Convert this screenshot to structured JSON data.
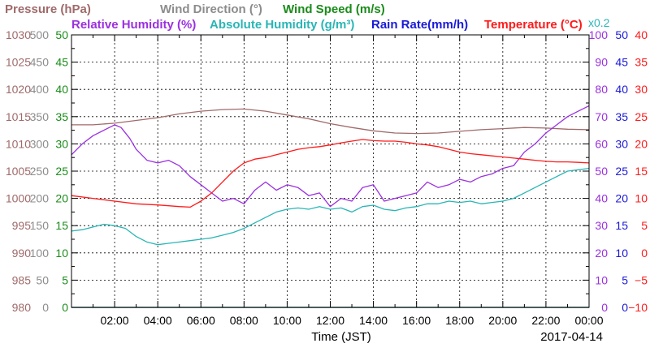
{
  "header": {
    "row1": [
      {
        "text": "Pressure (hPa)",
        "color": "#a06a6a"
      },
      {
        "text": "Wind Direction (°)",
        "color": "#8c8c8c"
      },
      {
        "text": "Wind Speed (m/s)",
        "color": "#1a8c1a"
      }
    ],
    "row2": [
      {
        "text": "Relative Humidity (%)",
        "color": "#9b30e0"
      },
      {
        "text": "Absolute Humidity (g/m³)",
        "color": "#2ab5b5"
      },
      {
        "text": "Rain Rate(mm/h)",
        "color": "#1a1ad8"
      },
      {
        "text": "Temperature (°C)",
        "color": "#ff1a1a"
      }
    ],
    "multiplier": {
      "text": "x0.2",
      "color": "#2ab5b5"
    }
  },
  "footer": {
    "xlabel": "Time (JST)",
    "date": "2017-04-14"
  },
  "chart_data": {
    "type": "line",
    "x_ticks": [
      "02:00",
      "04:00",
      "06:00",
      "08:00",
      "10:00",
      "12:00",
      "14:00",
      "16:00",
      "18:00",
      "20:00",
      "22:00",
      "00:00"
    ],
    "xlim": [
      "00:00",
      "24:00"
    ],
    "grid": true,
    "left_axes": [
      {
        "name": "pressure",
        "ticks": [
          "1030",
          "1025",
          "1020",
          "1015",
          "1010",
          "1005",
          "1000",
          "995",
          "990",
          "985",
          "980"
        ],
        "color": "#a06a6a",
        "range": [
          980,
          1030
        ]
      },
      {
        "name": "wind_direction",
        "ticks": [
          "500",
          "450",
          "400",
          "350",
          "300",
          "250",
          "200",
          "150",
          "100",
          "50",
          "0"
        ],
        "color": "#8c8c8c",
        "range": [
          0,
          500
        ]
      },
      {
        "name": "wind_speed",
        "ticks": [
          "50",
          "45",
          "40",
          "35",
          "30",
          "25",
          "20",
          "15",
          "10",
          "5",
          "0"
        ],
        "color": "#1a8c1a",
        "range": [
          0,
          50
        ]
      }
    ],
    "right_axes": [
      {
        "name": "relative_humidity",
        "ticks": [
          "100",
          "90",
          "80",
          "70",
          "60",
          "50",
          "40",
          "30",
          "20",
          "10",
          "0"
        ],
        "color": "#9b30e0",
        "range": [
          0,
          100
        ]
      },
      {
        "name": "rain_rate",
        "ticks": [
          "50",
          "45",
          "40",
          "35",
          "30",
          "25",
          "20",
          "15",
          "10",
          "5",
          "0"
        ],
        "color": "#1a1ad8",
        "range": [
          0,
          50
        ]
      },
      {
        "name": "temperature",
        "ticks": [
          "40",
          "35",
          "30",
          "25",
          "20",
          "15",
          "10",
          "5",
          "0",
          "−5",
          "−10"
        ],
        "color": "#ff1a1a",
        "range": [
          -10,
          40
        ]
      }
    ],
    "series": [
      {
        "name": "Pressure (hPa)",
        "color": "#a06a6a",
        "axis": "pressure",
        "points": [
          [
            0,
            1013.5
          ],
          [
            1,
            1013.5
          ],
          [
            2,
            1013.8
          ],
          [
            3,
            1014.3
          ],
          [
            4,
            1014.8
          ],
          [
            5,
            1015.5
          ],
          [
            6,
            1016.0
          ],
          [
            7,
            1016.3
          ],
          [
            8,
            1016.4
          ],
          [
            9,
            1016.0
          ],
          [
            10,
            1015.3
          ],
          [
            11,
            1014.6
          ],
          [
            12,
            1013.7
          ],
          [
            13,
            1013.0
          ],
          [
            14,
            1012.4
          ],
          [
            15,
            1012.0
          ],
          [
            16,
            1011.9
          ],
          [
            17,
            1012.0
          ],
          [
            18,
            1012.3
          ],
          [
            19,
            1012.6
          ],
          [
            20,
            1012.8
          ],
          [
            21,
            1013.0
          ],
          [
            22,
            1012.9
          ],
          [
            23,
            1012.7
          ],
          [
            24,
            1012.6
          ]
        ]
      },
      {
        "name": "Relative Humidity (%)",
        "color": "#9b30e0",
        "axis": "relative_humidity",
        "points": [
          [
            0,
            56
          ],
          [
            0.5,
            60
          ],
          [
            1,
            63
          ],
          [
            1.5,
            65
          ],
          [
            2,
            67
          ],
          [
            2.3,
            66
          ],
          [
            2.7,
            62
          ],
          [
            3,
            58
          ],
          [
            3.5,
            54
          ],
          [
            4,
            53
          ],
          [
            4.5,
            54
          ],
          [
            5,
            52
          ],
          [
            5.5,
            48
          ],
          [
            6,
            45
          ],
          [
            6.5,
            42
          ],
          [
            7,
            39
          ],
          [
            7.5,
            40
          ],
          [
            8,
            38
          ],
          [
            8.5,
            43
          ],
          [
            9,
            46
          ],
          [
            9.5,
            43
          ],
          [
            10,
            45
          ],
          [
            10.5,
            44
          ],
          [
            11,
            41
          ],
          [
            11.5,
            42
          ],
          [
            12,
            37
          ],
          [
            12.5,
            40
          ],
          [
            13,
            39
          ],
          [
            13.5,
            44
          ],
          [
            14,
            45
          ],
          [
            14.5,
            39
          ],
          [
            15,
            40
          ],
          [
            15.5,
            41
          ],
          [
            16,
            42
          ],
          [
            16.5,
            46
          ],
          [
            17,
            44
          ],
          [
            17.5,
            45
          ],
          [
            18,
            47
          ],
          [
            18.5,
            46
          ],
          [
            19,
            48
          ],
          [
            19.5,
            49
          ],
          [
            20,
            51
          ],
          [
            20.5,
            52
          ],
          [
            21,
            57
          ],
          [
            21.5,
            60
          ],
          [
            22,
            64
          ],
          [
            22.5,
            67
          ],
          [
            23,
            70
          ],
          [
            23.5,
            72
          ],
          [
            24,
            74
          ]
        ]
      },
      {
        "name": "Absolute Humidity (g/m³)",
        "color": "#2ab5b5",
        "axis": "relative_humidity",
        "points": [
          [
            0,
            28
          ],
          [
            0.5,
            28.5
          ],
          [
            1,
            29.5
          ],
          [
            1.5,
            30.5
          ],
          [
            2,
            30
          ],
          [
            2.5,
            29
          ],
          [
            3,
            26
          ],
          [
            3.5,
            24
          ],
          [
            4,
            23
          ],
          [
            4.5,
            23.5
          ],
          [
            5,
            24
          ],
          [
            5.5,
            24.5
          ],
          [
            6,
            25
          ],
          [
            6.5,
            25.5
          ],
          [
            7,
            26.5
          ],
          [
            7.5,
            27.5
          ],
          [
            8,
            29
          ],
          [
            8.5,
            31
          ],
          [
            9,
            33
          ],
          [
            9.5,
            35
          ],
          [
            10,
            36
          ],
          [
            10.5,
            36.5
          ],
          [
            11,
            36
          ],
          [
            11.5,
            37
          ],
          [
            12,
            36
          ],
          [
            12.5,
            36.5
          ],
          [
            13,
            35
          ],
          [
            13.5,
            37
          ],
          [
            14,
            37.5
          ],
          [
            14.5,
            36
          ],
          [
            15,
            35.5
          ],
          [
            15.5,
            36.5
          ],
          [
            16,
            37
          ],
          [
            16.5,
            38
          ],
          [
            17,
            38
          ],
          [
            17.5,
            39
          ],
          [
            18,
            38.5
          ],
          [
            18.5,
            39
          ],
          [
            19,
            38
          ],
          [
            19.5,
            38.5
          ],
          [
            20,
            39
          ],
          [
            20.5,
            40
          ],
          [
            21,
            42
          ],
          [
            21.5,
            44
          ],
          [
            22,
            46
          ],
          [
            22.5,
            48
          ],
          [
            23,
            50
          ],
          [
            23.5,
            50.5
          ],
          [
            24,
            51
          ]
        ]
      },
      {
        "name": "Rain Rate(mm/h)",
        "color": "#1a1ad8",
        "axis": "rain_rate",
        "points": [
          [
            0,
            0
          ],
          [
            24,
            0
          ]
        ]
      },
      {
        "name": "Temperature (°C)",
        "color": "#ff1a1a",
        "axis": "temperature",
        "points": [
          [
            0,
            10.5
          ],
          [
            1,
            10
          ],
          [
            2,
            9.5
          ],
          [
            3,
            9
          ],
          [
            4,
            8.8
          ],
          [
            5,
            8.5
          ],
          [
            5.5,
            8.4
          ],
          [
            6,
            9.5
          ],
          [
            6.5,
            11
          ],
          [
            7,
            13
          ],
          [
            7.5,
            15
          ],
          [
            8,
            16.5
          ],
          [
            8.5,
            17.2
          ],
          [
            9,
            17.5
          ],
          [
            9.5,
            18
          ],
          [
            10,
            18.5
          ],
          [
            10.5,
            19
          ],
          [
            11,
            19.3
          ],
          [
            11.5,
            19.5
          ],
          [
            12,
            19.8
          ],
          [
            12.5,
            20.2
          ],
          [
            13,
            20.5
          ],
          [
            13.5,
            20.8
          ],
          [
            14,
            20.6
          ],
          [
            14.5,
            20.5
          ],
          [
            15,
            20.5
          ],
          [
            15.5,
            20.3
          ],
          [
            16,
            20
          ],
          [
            16.5,
            19.8
          ],
          [
            17,
            19.5
          ],
          [
            17.5,
            19
          ],
          [
            18,
            18.5
          ],
          [
            18.5,
            18.2
          ],
          [
            19,
            18
          ],
          [
            19.5,
            17.8
          ],
          [
            20,
            17.6
          ],
          [
            20.5,
            17.4
          ],
          [
            21,
            17.2
          ],
          [
            21.5,
            17
          ],
          [
            22,
            16.8
          ],
          [
            22.5,
            16.7
          ],
          [
            23,
            16.7
          ],
          [
            23.5,
            16.6
          ],
          [
            24,
            16.5
          ]
        ]
      },
      {
        "name": "Wind Speed (m/s)",
        "color": "#1a8c1a",
        "axis": "wind_speed",
        "points": [
          [
            0,
            0
          ],
          [
            24,
            0
          ]
        ]
      }
    ]
  }
}
